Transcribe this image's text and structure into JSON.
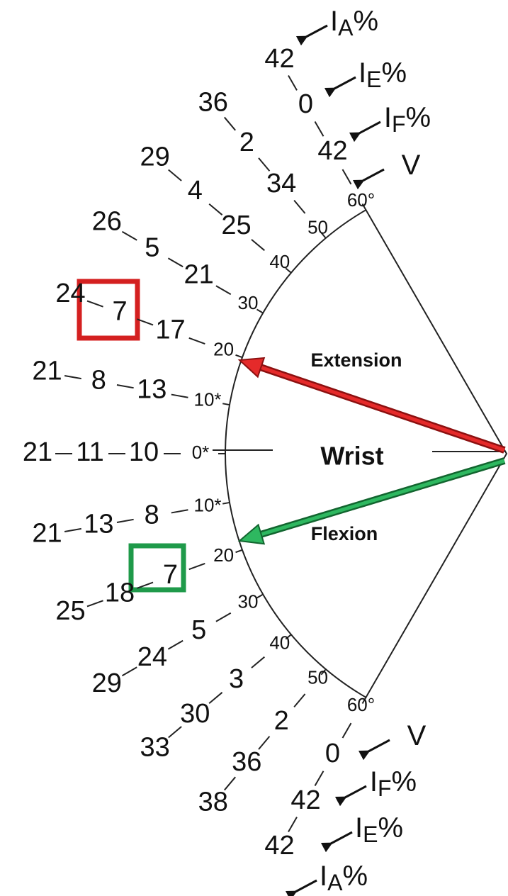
{
  "center_label": "Wrist",
  "extension": {
    "label": "Extension",
    "rows": [
      {
        "angle": "0*",
        "IF": 10,
        "IE": 11,
        "IA": 21
      },
      {
        "angle": "10*",
        "IF": 13,
        "IE": 8,
        "IA": 21
      },
      {
        "angle": "20",
        "IF": 17,
        "IE": 7,
        "IA": 24
      },
      {
        "angle": "30",
        "IF": 21,
        "IE": 5,
        "IA": 26
      },
      {
        "angle": "40",
        "IF": 25,
        "IE": 4,
        "IA": 29
      },
      {
        "angle": "50",
        "IF": 34,
        "IE": 2,
        "IA": 36
      },
      {
        "angle": "60°",
        "IF": 42,
        "IE": 0,
        "IA": 42
      }
    ],
    "legend": [
      {
        "main": "V"
      },
      {
        "main": "I",
        "sub": "F",
        "suffix": "%"
      },
      {
        "main": "I",
        "sub": "E",
        "suffix": "%"
      },
      {
        "main": "I",
        "sub": "A",
        "suffix": "%"
      }
    ]
  },
  "flexion": {
    "label": "Flexion",
    "rows": [
      {
        "angle": "10*",
        "IF": 8,
        "IE": 13,
        "IA": 21
      },
      {
        "angle": "20",
        "IF": 7,
        "IE": 18,
        "IA": 25
      },
      {
        "angle": "30",
        "IF": 5,
        "IE": 24,
        "IA": 29
      },
      {
        "angle": "40",
        "IF": 3,
        "IE": 30,
        "IA": 33
      },
      {
        "angle": "50",
        "IF": 2,
        "IE": 36,
        "IA": 38
      },
      {
        "angle": "60°",
        "IF": 0,
        "IE": 42,
        "IA": 42
      }
    ],
    "legend": [
      {
        "main": "V"
      },
      {
        "main": "I",
        "sub": "F",
        "suffix": "%"
      },
      {
        "main": "I",
        "sub": "E",
        "suffix": "%"
      },
      {
        "main": "I",
        "sub": "A",
        "suffix": "%"
      }
    ]
  }
}
